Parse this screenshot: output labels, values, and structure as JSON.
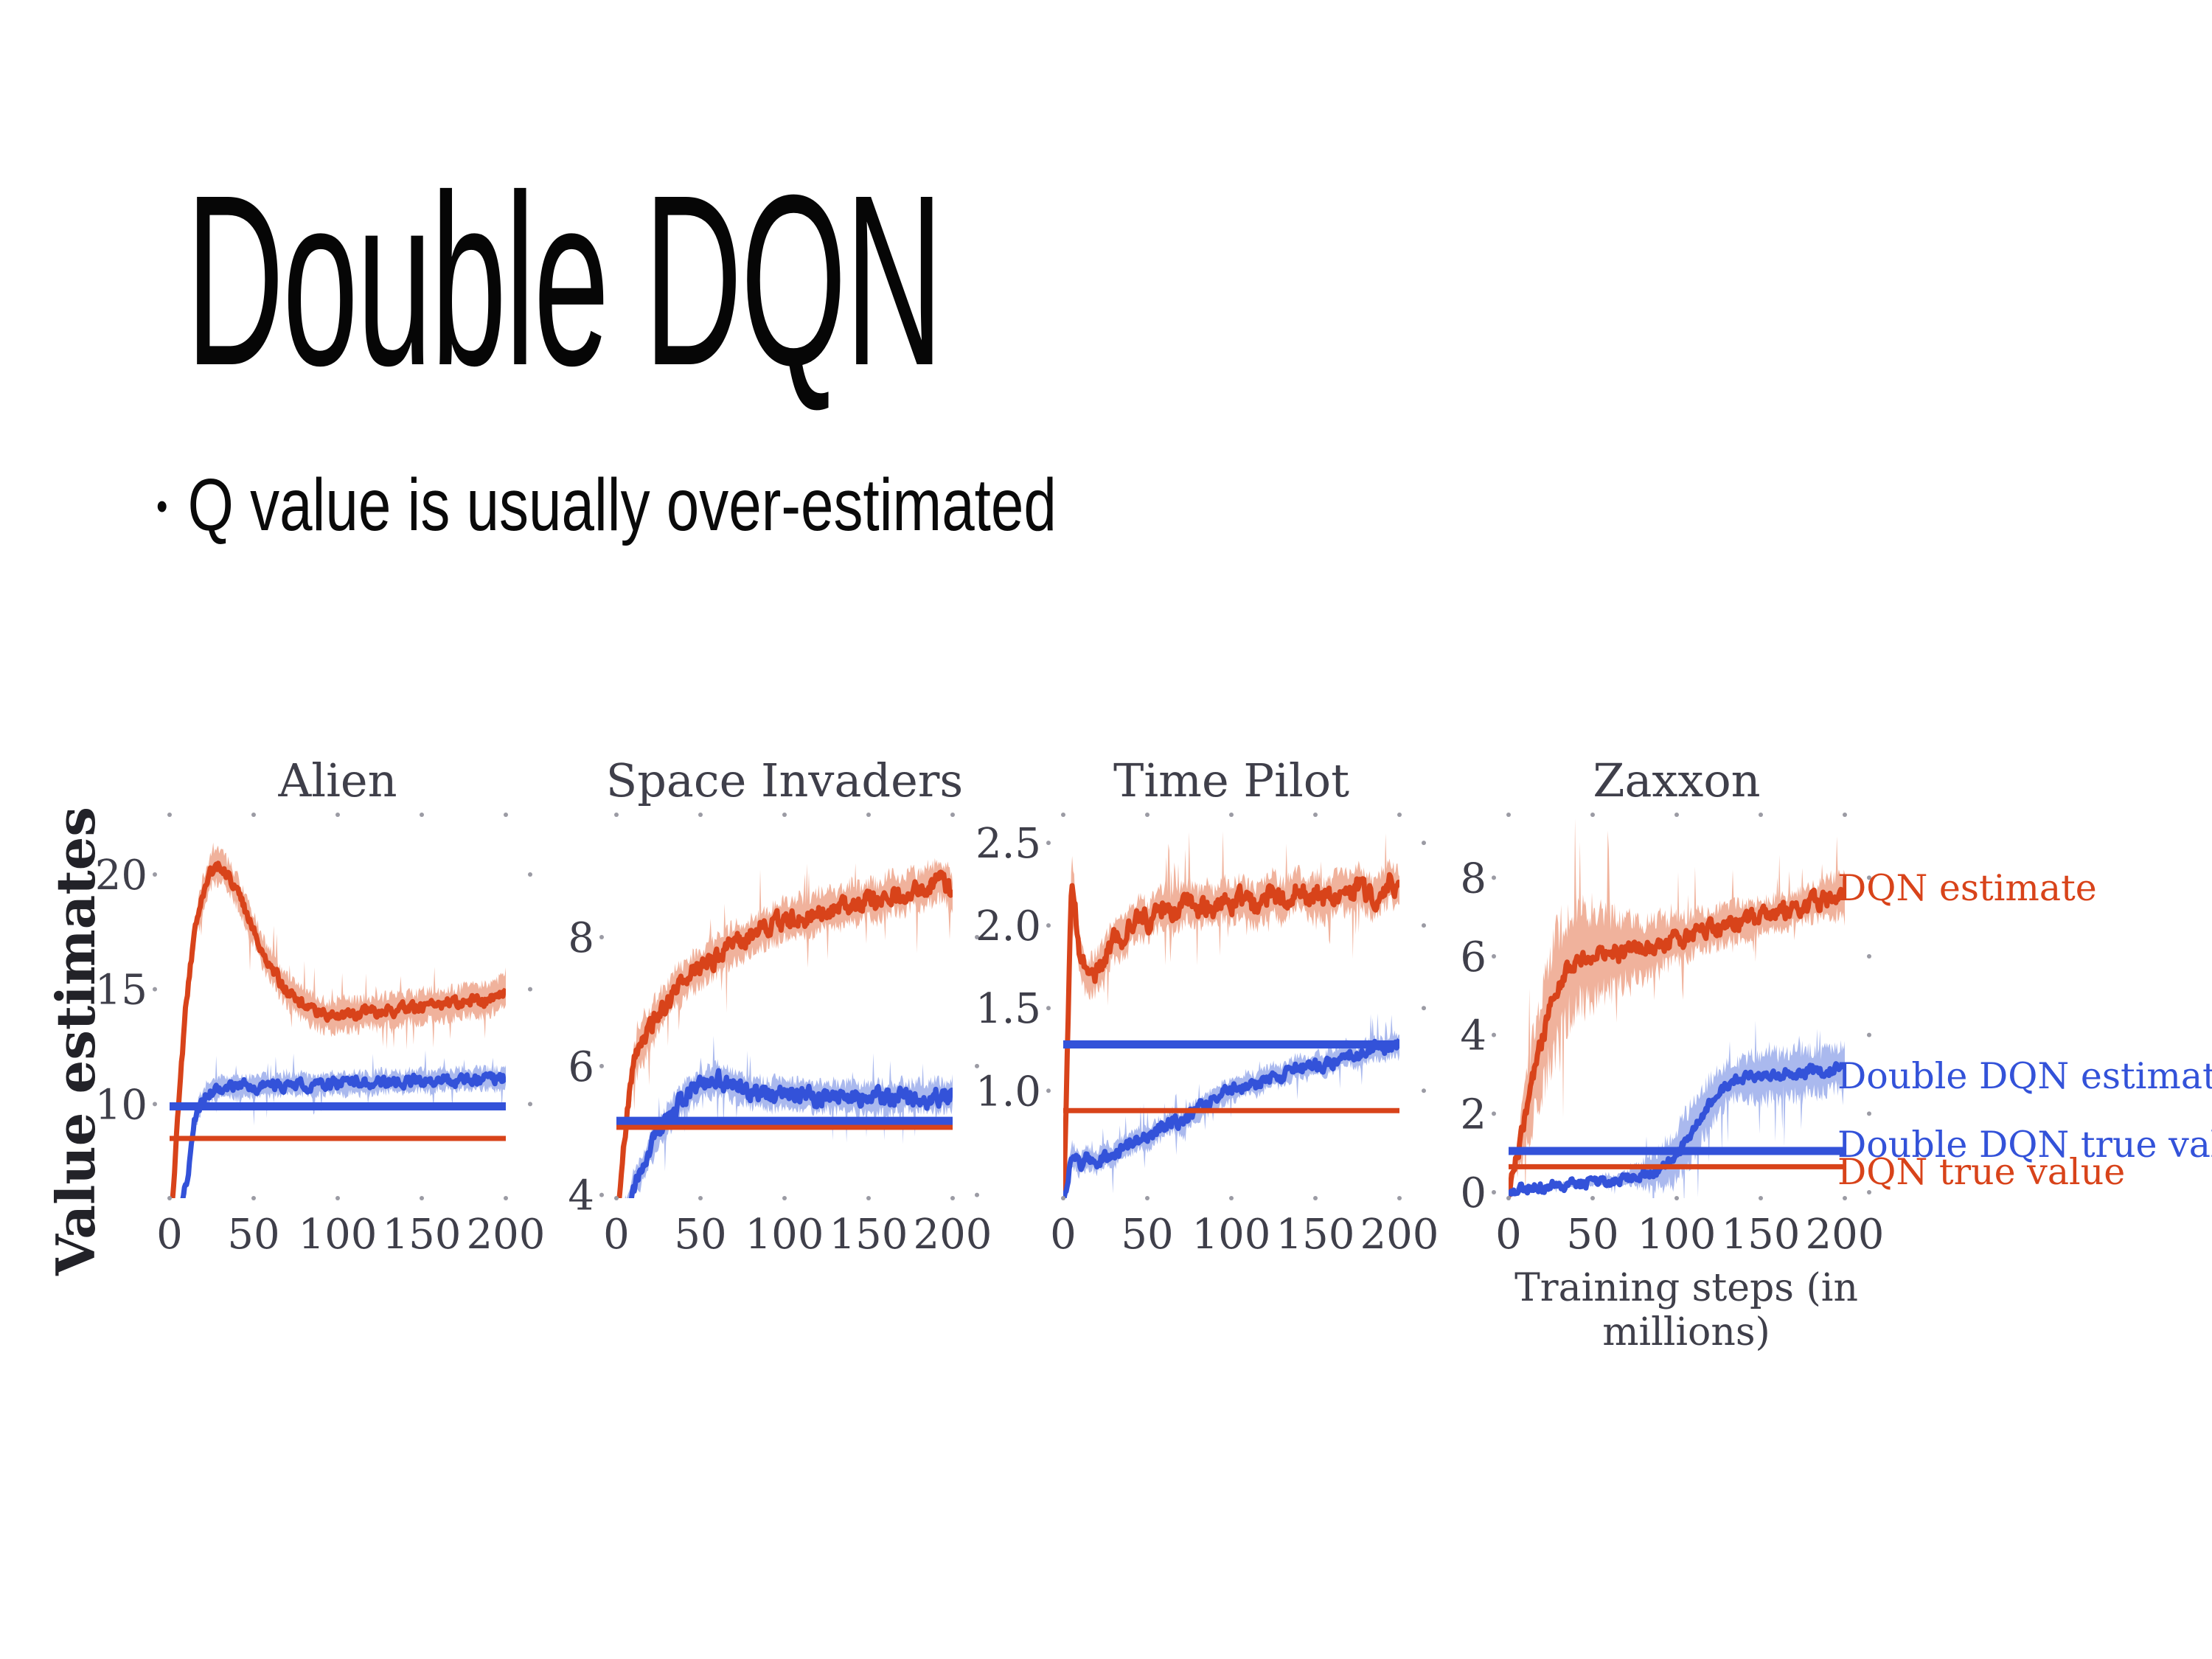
{
  "slide": {
    "title": "Double DQN",
    "bullet_marker": "•",
    "bullet_text": "Q value is usually over-estimated"
  },
  "figure": {
    "ylabel": "Value estimates",
    "xlabel": "Training steps (in millions)",
    "colors": {
      "dqn": "#d8431a",
      "dqn_band": "#f0b29c",
      "ddqn": "#3352d9",
      "ddqn_band": "#aab9ee",
      "axis_text": "#3f3f4a",
      "tick_dot": "#9b9ba4"
    },
    "legend": [
      {
        "label": "DQN estimate",
        "series": "dqn"
      },
      {
        "label": "Double DQN estimate",
        "series": "ddqn"
      },
      {
        "label": "Double DQN true value",
        "series": "ddqn"
      },
      {
        "label": "DQN true value",
        "series": "dqn"
      }
    ]
  },
  "chart_data": [
    {
      "type": "line",
      "title": "Alien",
      "x": [
        0,
        5,
        10,
        15,
        20,
        25,
        30,
        35,
        40,
        45,
        50,
        55,
        60,
        65,
        70,
        75,
        80,
        85,
        90,
        95,
        100,
        105,
        110,
        115,
        120,
        125,
        130,
        135,
        140,
        145,
        150,
        155,
        160,
        165,
        170,
        175,
        180,
        185,
        190,
        195,
        200
      ],
      "xlim": [
        0,
        200
      ],
      "x_ticks": [
        0,
        50,
        100,
        150,
        200
      ],
      "ylim": [
        5.9,
        22.6
      ],
      "y_ticks": [
        10,
        15,
        20
      ],
      "y_tick_labels": [
        "10",
        "15",
        "20"
      ],
      "series": [
        {
          "name": "DQN estimate",
          "color": "dqn",
          "band": 0.8,
          "noise": 0.5,
          "values": [
            4.0,
            9.5,
            14.5,
            17.5,
            19.2,
            20.2,
            20.4,
            19.9,
            19.3,
            18.4,
            17.6,
            16.7,
            16.0,
            15.4,
            14.9,
            14.6,
            14.3,
            14.1,
            13.9,
            13.8,
            13.85,
            13.9,
            13.85,
            14.0,
            14.05,
            13.95,
            14.1,
            14.05,
            14.2,
            14.15,
            14.25,
            14.3,
            14.25,
            14.4,
            14.35,
            14.45,
            14.5,
            14.45,
            14.6,
            14.7,
            15.0
          ]
        },
        {
          "name": "Double DQN estimate",
          "color": "ddqn",
          "band": 0.55,
          "noise": 0.5,
          "values": [
            5.0,
            5.0,
            6.5,
            9.3,
            10.3,
            10.6,
            10.7,
            10.75,
            10.65,
            10.8,
            10.7,
            10.85,
            10.75,
            10.85,
            10.8,
            10.9,
            10.85,
            10.8,
            10.9,
            10.85,
            10.95,
            10.85,
            11.0,
            10.9,
            10.85,
            11.0,
            10.95,
            11.0,
            10.95,
            11.05,
            11.0,
            10.95,
            11.1,
            11.05,
            11.05,
            11.1,
            11.05,
            11.1,
            11.05,
            11.1,
            11.15
          ]
        }
      ],
      "true_lines": [
        {
          "name": "DQN true value",
          "color": "dqn",
          "value": 8.5
        },
        {
          "name": "Double DQN true value",
          "color": "ddqn",
          "value": 9.9
        }
      ]
    },
    {
      "type": "line",
      "title": "Space Invaders",
      "x": [
        0,
        5,
        10,
        15,
        20,
        25,
        30,
        35,
        40,
        45,
        50,
        55,
        60,
        65,
        70,
        75,
        80,
        85,
        90,
        95,
        100,
        105,
        110,
        115,
        120,
        125,
        130,
        135,
        140,
        145,
        150,
        155,
        160,
        165,
        170,
        175,
        180,
        185,
        190,
        195,
        200
      ],
      "xlim": [
        0,
        200
      ],
      "x_ticks": [
        0,
        50,
        100,
        150,
        200
      ],
      "ylim": [
        3.95,
        9.9
      ],
      "y_ticks": [
        4,
        6,
        8
      ],
      "y_tick_labels": [
        "4",
        "6",
        "8"
      ],
      "series": [
        {
          "name": "DQN estimate",
          "color": "dqn",
          "band": 0.35,
          "noise": 0.3,
          "values": [
            3.3,
            4.9,
            6.0,
            6.35,
            6.6,
            6.85,
            7.0,
            7.2,
            7.3,
            7.45,
            7.5,
            7.65,
            7.7,
            7.8,
            7.9,
            7.95,
            8.0,
            8.1,
            8.15,
            8.2,
            8.25,
            8.3,
            8.35,
            8.3,
            8.4,
            8.45,
            8.4,
            8.5,
            8.55,
            8.5,
            8.6,
            8.55,
            8.65,
            8.7,
            8.65,
            8.75,
            8.7,
            8.8,
            8.85,
            8.9,
            8.6
          ]
        },
        {
          "name": "Double DQN estimate",
          "color": "ddqn",
          "band": 0.28,
          "noise": 0.28,
          "values": [
            3.3,
            3.7,
            4.1,
            4.4,
            4.7,
            4.95,
            5.15,
            5.35,
            5.5,
            5.6,
            5.7,
            5.75,
            5.8,
            5.75,
            5.7,
            5.65,
            5.6,
            5.58,
            5.55,
            5.57,
            5.55,
            5.53,
            5.57,
            5.55,
            5.5,
            5.55,
            5.52,
            5.5,
            5.55,
            5.5,
            5.48,
            5.52,
            5.5,
            5.52,
            5.55,
            5.5,
            5.53,
            5.5,
            5.55,
            5.52,
            5.58
          ]
        }
      ],
      "true_lines": [
        {
          "name": "DQN true value",
          "color": "dqn",
          "value": 5.05
        },
        {
          "name": "Double DQN true value",
          "color": "ddqn",
          "value": 5.15
        }
      ]
    },
    {
      "type": "line",
      "title": "Time Pilot",
      "x": [
        0,
        5,
        10,
        15,
        20,
        25,
        30,
        35,
        40,
        45,
        50,
        55,
        60,
        65,
        70,
        75,
        80,
        85,
        90,
        95,
        100,
        105,
        110,
        115,
        120,
        125,
        130,
        135,
        140,
        145,
        150,
        155,
        160,
        165,
        170,
        175,
        180,
        185,
        190,
        195,
        200
      ],
      "xlim": [
        0,
        200
      ],
      "x_ticks": [
        0,
        50,
        100,
        150,
        200
      ],
      "ylim": [
        0.35,
        2.67
      ],
      "y_ticks": [
        1.0,
        1.5,
        2.0,
        2.5
      ],
      "y_tick_labels": [
        "1.0",
        "1.5",
        "2.0",
        "2.5"
      ],
      "series": [
        {
          "name": "DQN estimate",
          "color": "dqn",
          "band": 0.14,
          "noise": 0.13,
          "values": [
            0.3,
            2.3,
            1.8,
            1.68,
            1.72,
            1.82,
            1.9,
            1.92,
            2.0,
            2.05,
            2.02,
            2.08,
            2.12,
            2.08,
            2.12,
            2.15,
            2.1,
            2.14,
            2.1,
            2.16,
            2.12,
            2.18,
            2.14,
            2.1,
            2.16,
            2.2,
            2.14,
            2.18,
            2.22,
            2.16,
            2.2,
            2.14,
            2.18,
            2.22,
            2.18,
            2.24,
            2.2,
            2.16,
            2.22,
            2.26,
            2.2
          ]
        },
        {
          "name": "Double DQN estimate",
          "color": "ddqn",
          "band": 0.08,
          "noise": 0.08,
          "values": [
            0.3,
            0.62,
            0.55,
            0.6,
            0.57,
            0.62,
            0.6,
            0.65,
            0.68,
            0.72,
            0.7,
            0.75,
            0.78,
            0.82,
            0.8,
            0.85,
            0.88,
            0.92,
            0.95,
            0.98,
            1.0,
            1.02,
            1.05,
            1.03,
            1.07,
            1.1,
            1.08,
            1.12,
            1.15,
            1.13,
            1.17,
            1.15,
            1.18,
            1.2,
            1.22,
            1.2,
            1.24,
            1.26,
            1.24,
            1.28,
            1.27
          ]
        }
      ],
      "true_lines": [
        {
          "name": "DQN true value",
          "color": "dqn",
          "value": 0.88
        },
        {
          "name": "Double DQN true value",
          "color": "ddqn",
          "value": 1.28
        }
      ]
    },
    {
      "type": "line",
      "title": "Zaxxon",
      "x": [
        0,
        5,
        10,
        15,
        20,
        25,
        30,
        35,
        40,
        45,
        50,
        55,
        60,
        65,
        70,
        75,
        80,
        85,
        90,
        95,
        100,
        105,
        110,
        115,
        120,
        125,
        130,
        135,
        140,
        145,
        150,
        155,
        160,
        165,
        170,
        175,
        180,
        185,
        190,
        195,
        200
      ],
      "xlim": [
        0,
        200
      ],
      "x_ticks": [
        0,
        50,
        100,
        150,
        200
      ],
      "ylim": [
        -0.15,
        9.6
      ],
      "y_ticks": [
        0,
        2,
        4,
        6,
        8
      ],
      "y_tick_labels": [
        "0",
        "2",
        "4",
        "6",
        "8"
      ],
      "series": [
        {
          "name": "DQN estimate",
          "color": "dqn",
          "noise": 0.45,
          "band": [
            0.1,
            0.5,
            1.0,
            1.4,
            1.6,
            1.7,
            1.7,
            1.6,
            1.5,
            1.5,
            1.4,
            1.3,
            1.2,
            1.1,
            1.0,
            0.9,
            0.85,
            0.8,
            0.75,
            0.7,
            0.7,
            0.65,
            0.65,
            0.6,
            0.6,
            0.6,
            0.55,
            0.55,
            0.55,
            0.5,
            0.5,
            0.5,
            0.5,
            0.5,
            0.5,
            0.5,
            0.5,
            0.55,
            0.6,
            0.65,
            0.7
          ],
          "values": [
            -0.1,
            0.9,
            1.9,
            3.0,
            3.9,
            4.7,
            5.3,
            5.7,
            5.9,
            6.0,
            6.05,
            6.0,
            6.1,
            6.05,
            6.15,
            6.2,
            6.15,
            6.3,
            6.4,
            6.35,
            6.5,
            6.45,
            6.6,
            6.65,
            6.7,
            6.75,
            6.8,
            6.9,
            6.85,
            6.95,
            7.0,
            7.05,
            7.1,
            7.15,
            7.2,
            7.3,
            7.35,
            7.4,
            7.45,
            7.55,
            7.5
          ]
        },
        {
          "name": "Double DQN estimate",
          "color": "ddqn",
          "noise": 0.28,
          "band": [
            0.05,
            0.05,
            0.05,
            0.05,
            0.05,
            0.06,
            0.06,
            0.07,
            0.08,
            0.08,
            0.1,
            0.1,
            0.12,
            0.15,
            0.2,
            0.3,
            0.4,
            0.5,
            0.6,
            0.7,
            0.8,
            0.85,
            0.8,
            0.75,
            0.7,
            0.65,
            0.6,
            0.55,
            0.6,
            0.65,
            0.7,
            0.75,
            0.7,
            0.65,
            0.7,
            0.75,
            0.7,
            0.65,
            0.7,
            0.65,
            0.6
          ],
          "values": [
            0.05,
            0.08,
            0.1,
            0.12,
            0.12,
            0.15,
            0.15,
            0.18,
            0.2,
            0.22,
            0.25,
            0.28,
            0.3,
            0.33,
            0.36,
            0.4,
            0.45,
            0.5,
            0.6,
            0.75,
            0.95,
            1.25,
            1.6,
            1.95,
            2.3,
            2.55,
            2.75,
            2.85,
            2.9,
            2.95,
            2.9,
            3.0,
            2.95,
            3.05,
            3.0,
            3.05,
            3.1,
            3.05,
            3.1,
            3.15,
            3.2
          ]
        }
      ],
      "true_lines": [
        {
          "name": "DQN true value",
          "color": "dqn",
          "value": 0.65
        },
        {
          "name": "Double DQN true value",
          "color": "ddqn",
          "value": 1.05
        }
      ]
    }
  ]
}
